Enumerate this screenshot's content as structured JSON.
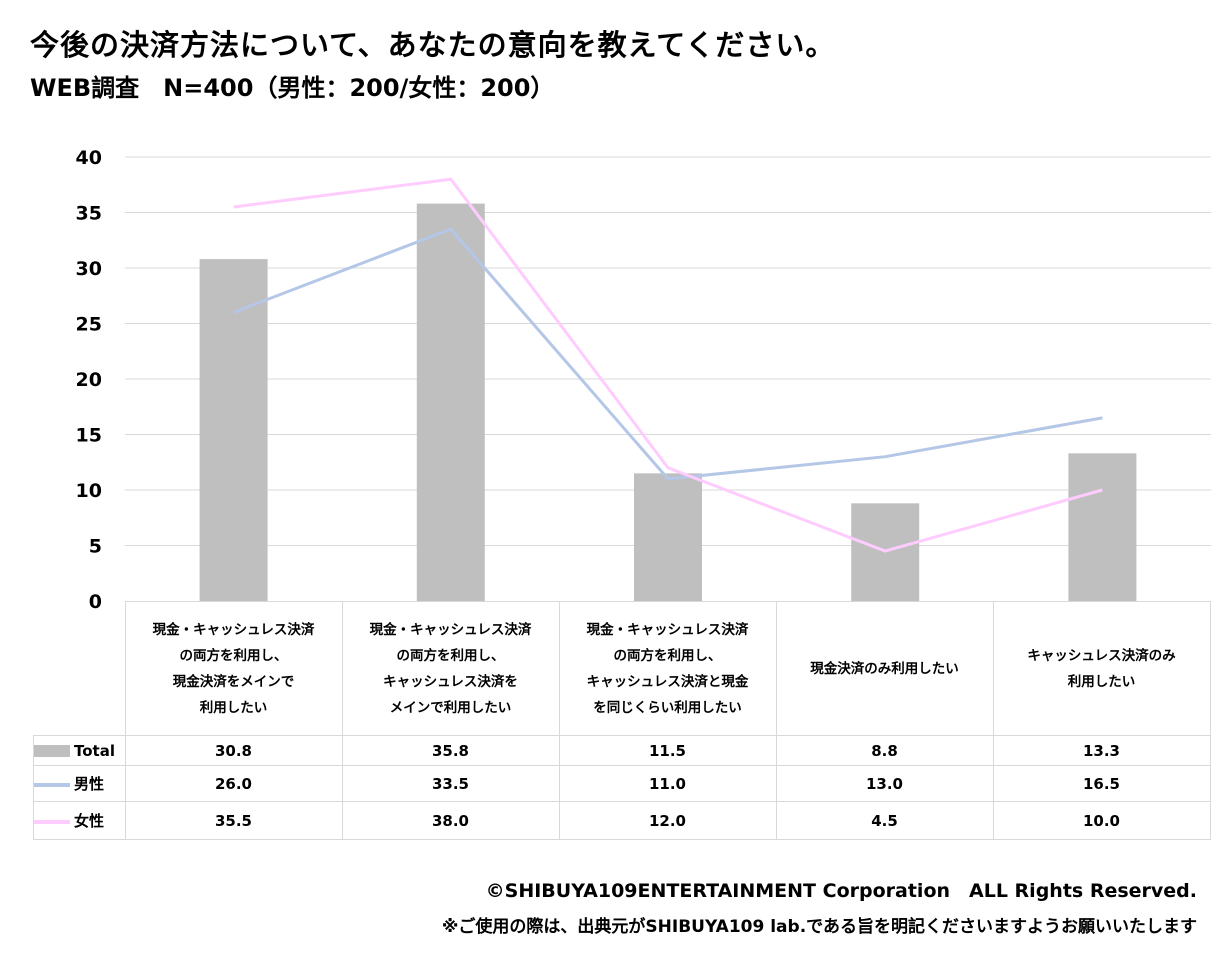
{
  "title": "今後の決済方法について、あなたの意向を教えてください。",
  "subtitle": "WEB調査　N=400（男性：200/女性：200）",
  "chart_data": {
    "type": "bar+line",
    "ylim": [
      0,
      40
    ],
    "yticks": [
      "0",
      "5",
      "10",
      "15",
      "20",
      "25",
      "30",
      "35",
      "40"
    ],
    "categories": [
      [
        "現金・キャッシュレス決済",
        "の両方を利用し、",
        "現金決済をメインで",
        "利用したい"
      ],
      [
        "現金・キャッシュレス決済",
        "の両方を利用し、",
        "キャッシュレス決済を",
        "メインで利用したい"
      ],
      [
        "現金・キャッシュレス決済",
        "の両方を利用し、",
        "キャッシュレス決済と現金",
        "を同じくらい利用したい"
      ],
      [
        "現金決済のみ利用したい"
      ],
      [
        "キャッシュレス決済のみ",
        "利用したい"
      ]
    ],
    "series": [
      {
        "name": "Total",
        "type": "bar",
        "color": "#bfbfbf",
        "values": [
          30.8,
          35.8,
          11.5,
          8.8,
          13.3
        ],
        "labels": [
          "30.8",
          "35.8",
          "11.5",
          "8.8",
          "13.3"
        ]
      },
      {
        "name": "男性",
        "type": "line",
        "color": "#b4c7e7",
        "values": [
          26.0,
          33.5,
          11.0,
          13.0,
          16.5
        ],
        "labels": [
          "26.0",
          "33.5",
          "11.0",
          "13.0",
          "16.5"
        ]
      },
      {
        "name": "女性",
        "type": "line",
        "color": "#ffccff",
        "values": [
          35.5,
          38.0,
          12.0,
          4.5,
          10.0
        ],
        "labels": [
          "35.5",
          "38.0",
          "12.0",
          "4.5",
          "10.0"
        ]
      }
    ]
  },
  "footer": {
    "copyright": "©SHIBUYA109ENTERTAINMENT Corporation　ALL Rights Reserved.",
    "note": "※ご使用の際は、出典元がSHIBUYA109 lab.である旨を明記くださいますようお願いいたします"
  }
}
